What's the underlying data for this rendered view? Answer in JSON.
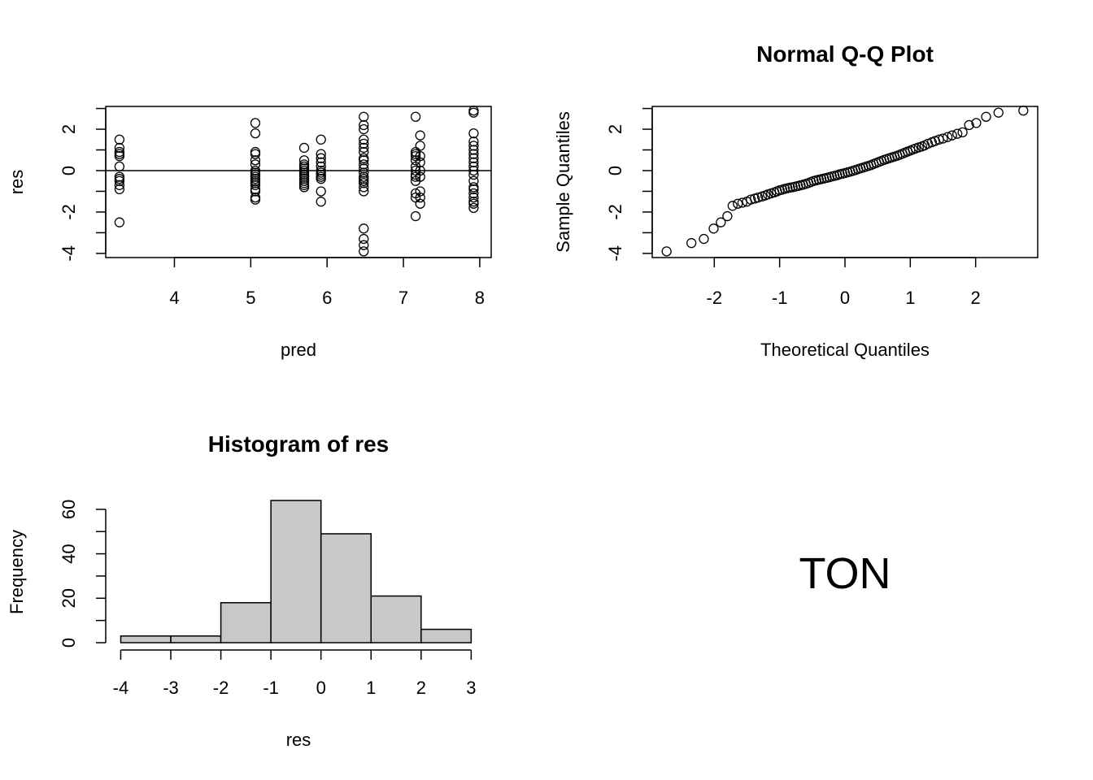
{
  "chart_data": [
    {
      "type": "scatter",
      "title": "",
      "xlabel": "pred",
      "ylabel": "res",
      "xlim": [
        3.1,
        8.15
      ],
      "ylim": [
        -4.2,
        3.1
      ],
      "xticks": [
        4,
        5,
        6,
        7,
        8
      ],
      "yticks": [
        -4,
        -2,
        0,
        2
      ],
      "reference_line_y": 0,
      "groups": [
        {
          "x": 3.28,
          "y": [
            1.5,
            1.1,
            0.9,
            0.8,
            0.7,
            0.2,
            -0.3,
            -0.4,
            -0.5,
            -0.7,
            -0.9,
            -2.5
          ]
        },
        {
          "x": 5.06,
          "y": [
            2.3,
            1.8,
            0.9,
            0.8,
            0.5,
            0.3,
            0.0,
            -0.1,
            -0.2,
            -0.3,
            -0.4,
            -0.5,
            -0.6,
            -0.7,
            -0.9,
            -1.0,
            -1.3,
            -1.4
          ]
        },
        {
          "x": 5.7,
          "y": [
            1.1,
            0.5,
            0.3,
            0.2,
            0.1,
            0.0,
            -0.1,
            -0.2,
            -0.3,
            -0.4,
            -0.5,
            -0.6,
            -0.7,
            -0.8
          ]
        },
        {
          "x": 5.92,
          "y": [
            1.5,
            0.8,
            0.6,
            0.4,
            0.2,
            0.0,
            -0.1,
            -0.2,
            -0.3,
            -0.4,
            -1.0,
            -1.5
          ]
        },
        {
          "x": 6.48,
          "y": [
            2.6,
            2.2,
            2.0,
            1.5,
            1.3,
            1.1,
            0.9,
            0.6,
            0.5,
            0.3,
            0.1,
            -0.1,
            -0.3,
            -0.4,
            -0.5,
            -0.6,
            -0.8,
            -1.0,
            -2.8,
            -3.3,
            -3.6,
            -3.9
          ]
        },
        {
          "x": 7.16,
          "y": [
            2.6,
            0.9,
            0.8,
            0.7,
            0.5,
            0.2,
            0.0,
            -0.2,
            -0.3,
            -0.5,
            -1.1,
            -1.3,
            -2.2
          ]
        },
        {
          "x": 7.22,
          "y": [
            1.7,
            1.2,
            0.7,
            0.4,
            0.0,
            -0.3,
            -1.0,
            -1.3,
            -1.6
          ]
        },
        {
          "x": 7.92,
          "y": [
            2.9,
            2.8,
            1.8,
            1.4,
            1.2,
            1.0,
            0.8,
            0.6,
            0.4,
            0.2,
            0.0,
            -0.2,
            -0.5,
            -0.8,
            -0.9,
            -1.1,
            -1.3,
            -1.5,
            -1.6,
            -1.8
          ]
        }
      ]
    },
    {
      "type": "scatter",
      "title": "Normal Q-Q Plot",
      "xlabel": "Theoretical Quantiles",
      "ylabel": "Sample Quantiles",
      "xlim": [
        -2.95,
        2.95
      ],
      "ylim": [
        -4.2,
        3.1
      ],
      "xticks": [
        -2,
        -1,
        0,
        1,
        2
      ],
      "yticks": [
        -4,
        -2,
        0,
        2
      ],
      "points": [
        [
          -2.73,
          -3.9
        ],
        [
          -2.35,
          -3.5
        ],
        [
          -2.16,
          -3.3
        ],
        [
          -2.01,
          -2.8
        ],
        [
          -1.9,
          -2.5
        ],
        [
          -1.8,
          -2.2
        ],
        [
          -1.72,
          -1.7
        ],
        [
          -1.64,
          -1.6
        ],
        [
          -1.57,
          -1.55
        ],
        [
          -1.5,
          -1.5
        ],
        [
          -1.44,
          -1.4
        ],
        [
          -1.38,
          -1.35
        ],
        [
          -1.33,
          -1.3
        ],
        [
          -1.27,
          -1.25
        ],
        [
          -1.22,
          -1.2
        ],
        [
          -1.18,
          -1.15
        ],
        [
          -1.13,
          -1.1
        ],
        [
          -1.08,
          -1.05
        ],
        [
          -1.04,
          -1.0
        ],
        [
          -1.0,
          -0.95
        ],
        [
          -0.96,
          -0.92
        ],
        [
          -0.92,
          -0.88
        ],
        [
          -0.88,
          -0.85
        ],
        [
          -0.84,
          -0.82
        ],
        [
          -0.8,
          -0.8
        ],
        [
          -0.76,
          -0.77
        ],
        [
          -0.72,
          -0.74
        ],
        [
          -0.68,
          -0.71
        ],
        [
          -0.64,
          -0.68
        ],
        [
          -0.6,
          -0.64
        ],
        [
          -0.56,
          -0.6
        ],
        [
          -0.52,
          -0.55
        ],
        [
          -0.48,
          -0.5
        ],
        [
          -0.44,
          -0.47
        ],
        [
          -0.4,
          -0.44
        ],
        [
          -0.36,
          -0.41
        ],
        [
          -0.32,
          -0.38
        ],
        [
          -0.28,
          -0.35
        ],
        [
          -0.24,
          -0.32
        ],
        [
          -0.2,
          -0.28
        ],
        [
          -0.16,
          -0.25
        ],
        [
          -0.12,
          -0.22
        ],
        [
          -0.08,
          -0.18
        ],
        [
          -0.04,
          -0.15
        ],
        [
          0.0,
          -0.12
        ],
        [
          0.04,
          -0.08
        ],
        [
          0.08,
          -0.05
        ],
        [
          0.12,
          -0.01
        ],
        [
          0.16,
          0.03
        ],
        [
          0.2,
          0.07
        ],
        [
          0.24,
          0.11
        ],
        [
          0.28,
          0.15
        ],
        [
          0.32,
          0.19
        ],
        [
          0.36,
          0.23
        ],
        [
          0.4,
          0.27
        ],
        [
          0.44,
          0.32
        ],
        [
          0.48,
          0.37
        ],
        [
          0.52,
          0.42
        ],
        [
          0.56,
          0.47
        ],
        [
          0.6,
          0.52
        ],
        [
          0.64,
          0.56
        ],
        [
          0.68,
          0.6
        ],
        [
          0.72,
          0.64
        ],
        [
          0.76,
          0.68
        ],
        [
          0.8,
          0.72
        ],
        [
          0.84,
          0.77
        ],
        [
          0.88,
          0.82
        ],
        [
          0.92,
          0.87
        ],
        [
          0.96,
          0.92
        ],
        [
          1.0,
          0.97
        ],
        [
          1.04,
          1.02
        ],
        [
          1.08,
          1.07
        ],
        [
          1.13,
          1.12
        ],
        [
          1.18,
          1.17
        ],
        [
          1.22,
          1.22
        ],
        [
          1.27,
          1.3
        ],
        [
          1.33,
          1.37
        ],
        [
          1.38,
          1.43
        ],
        [
          1.44,
          1.5
        ],
        [
          1.5,
          1.55
        ],
        [
          1.57,
          1.62
        ],
        [
          1.64,
          1.7
        ],
        [
          1.72,
          1.78
        ],
        [
          1.8,
          1.85
        ],
        [
          1.9,
          2.2
        ],
        [
          2.01,
          2.3
        ],
        [
          2.16,
          2.6
        ],
        [
          2.35,
          2.8
        ],
        [
          2.73,
          2.9
        ]
      ]
    },
    {
      "type": "bar",
      "title": "Histogram of res",
      "xlabel": "res",
      "ylabel": "Frequency",
      "xlim": [
        -4.3,
        3.4
      ],
      "ylim": [
        0,
        68
      ],
      "xticks": [
        -4,
        -3,
        -2,
        -1,
        0,
        1,
        2,
        3
      ],
      "yticks": [
        0,
        20,
        40,
        60
      ],
      "bins": [
        -4,
        -3,
        -2,
        -1,
        0,
        1,
        2,
        3
      ],
      "counts": [
        3,
        3,
        18,
        64,
        49,
        21,
        6
      ]
    }
  ],
  "annotation": {
    "text": "TON"
  }
}
